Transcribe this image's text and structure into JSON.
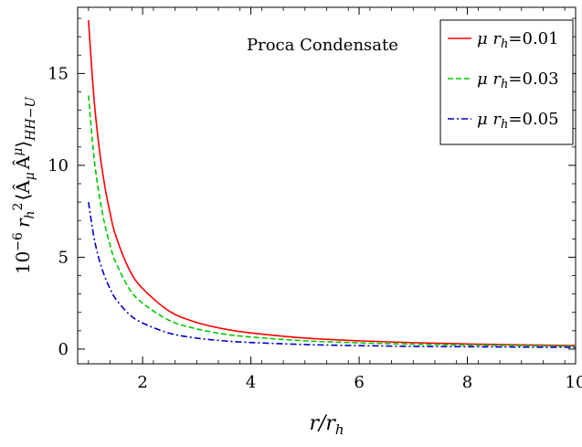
{
  "chart_data": {
    "type": "line",
    "title": "",
    "annotation": "Proca Condensate",
    "xlabel": {
      "main": "r/r",
      "sub": "h"
    },
    "ylabel": {
      "prefix": "10",
      "exp": "−6",
      "r": "r",
      "r_sub": "h",
      "r_sup": "2",
      "expr": "⟨Â",
      "mu_lower": "μ",
      "expr2": "Â",
      "mu_upper": "μ",
      "close": "⟩",
      "sub": "HH−U"
    },
    "xlim": [
      0.8,
      10.0
    ],
    "ylim": [
      -0.8,
      18.6
    ],
    "xticks": [
      2,
      4,
      6,
      8,
      10
    ],
    "xtick_labels": [
      "2",
      "4",
      "6",
      "8",
      "10"
    ],
    "yticks": [
      0,
      5,
      10,
      15
    ],
    "ytick_labels": [
      "0",
      "5",
      "10",
      "15"
    ],
    "grid": false,
    "legend_position": "top-right",
    "series": [
      {
        "name": "μ r_h=0.01",
        "legend_prefix": "μ r",
        "legend_sub": "h",
        "legend_value": "=0.01",
        "color": "#ff0000",
        "dash": "solid",
        "x": [
          1.0,
          1.1,
          1.2,
          1.3,
          1.4,
          1.5,
          1.75,
          2.0,
          2.5,
          3.0,
          3.5,
          4.0,
          5.0,
          6.0,
          7.0,
          8.0,
          9.0,
          10.0
        ],
        "y": [
          17.9,
          13.7,
          10.9,
          8.9,
          7.4,
          6.2,
          4.35,
          3.3,
          2.05,
          1.45,
          1.1,
          0.88,
          0.6,
          0.45,
          0.35,
          0.28,
          0.23,
          0.19
        ]
      },
      {
        "name": "μ r_h=0.03",
        "legend_prefix": "μ r",
        "legend_sub": "h",
        "legend_value": "=0.03",
        "color": "#00cc00",
        "dash": "dashed",
        "x": [
          1.0,
          1.1,
          1.2,
          1.3,
          1.4,
          1.5,
          1.75,
          2.0,
          2.5,
          3.0,
          3.5,
          4.0,
          5.0,
          6.0,
          7.0,
          8.0,
          9.0,
          10.0
        ],
        "y": [
          13.8,
          10.5,
          8.35,
          6.8,
          5.65,
          4.75,
          3.3,
          2.5,
          1.55,
          1.1,
          0.82,
          0.66,
          0.45,
          0.34,
          0.27,
          0.22,
          0.19,
          0.16
        ]
      },
      {
        "name": "μ r_h=0.05",
        "legend_prefix": "μ r",
        "legend_sub": "h",
        "legend_value": "=0.05",
        "color": "#0000cc",
        "dash": "dashdot",
        "x": [
          1.0,
          1.1,
          1.2,
          1.3,
          1.4,
          1.5,
          1.75,
          2.0,
          2.5,
          3.0,
          3.5,
          4.0,
          5.0,
          6.0,
          7.0,
          8.0,
          9.0,
          10.0
        ],
        "y": [
          8.0,
          6.1,
          4.85,
          3.95,
          3.28,
          2.75,
          1.9,
          1.42,
          0.86,
          0.6,
          0.45,
          0.36,
          0.25,
          0.19,
          0.15,
          0.13,
          0.11,
          0.1
        ]
      }
    ]
  }
}
